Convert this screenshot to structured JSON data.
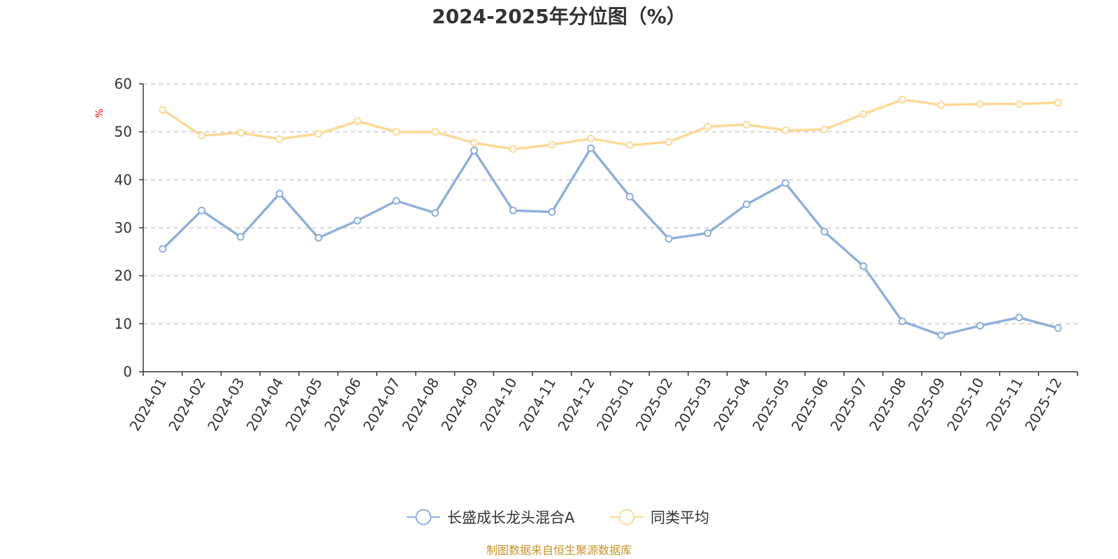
{
  "chart_data": {
    "type": "line",
    "title": "2024-2025年分位图（%）",
    "ylabel": "%",
    "xlabel": "",
    "ylim": [
      0,
      60
    ],
    "yticks": [
      0,
      10,
      20,
      30,
      40,
      50,
      60
    ],
    "grid": true,
    "categories": [
      "2024-01",
      "2024-02",
      "2024-03",
      "2024-04",
      "2024-05",
      "2024-06",
      "2024-07",
      "2024-08",
      "2024-09",
      "2024-10",
      "2024-11",
      "2024-12",
      "2025-01",
      "2025-02",
      "2025-03",
      "2025-04",
      "2025-05",
      "2025-06",
      "2025-07",
      "2025-08",
      "2025-09",
      "2025-10",
      "2025-11",
      "2025-12"
    ],
    "series": [
      {
        "name": "长盛成长龙头混合A",
        "color": "#8eb0dc",
        "values": [
          25.6,
          33.6,
          28.1,
          37.1,
          27.9,
          31.5,
          35.6,
          33.1,
          46.1,
          33.6,
          33.3,
          46.6,
          36.5,
          27.7,
          28.9,
          34.9,
          39.3,
          29.2,
          22.0,
          10.5,
          7.6,
          9.6,
          11.3,
          9.1
        ]
      },
      {
        "name": "同类平均",
        "color": "#fdd995",
        "values": [
          54.6,
          49.2,
          49.8,
          48.5,
          49.6,
          52.2,
          50.0,
          50.0,
          47.7,
          46.4,
          47.3,
          48.6,
          47.2,
          47.9,
          51.1,
          51.5,
          50.3,
          50.5,
          53.7,
          56.7,
          55.6,
          55.8,
          55.8,
          56.1
        ]
      }
    ],
    "legend_position": "bottom-center"
  },
  "unit_color": "#ff0000",
  "source_text": "制图数据来自恒生聚源数据库",
  "source_color": "#c8932a",
  "axis_color": "#333333",
  "grid_color": "#cccccc"
}
